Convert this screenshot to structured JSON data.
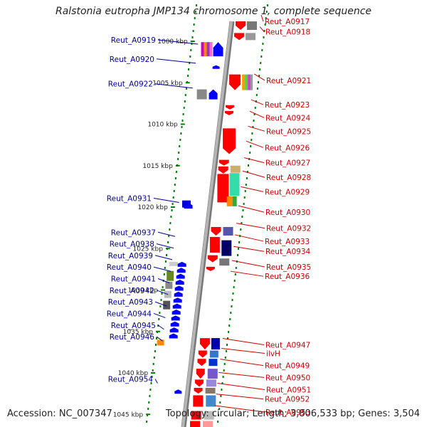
{
  "title": "Ralstonia eutropha JMP134 chromosome 1, complete sequence",
  "accession_text": "Accession: NC_007347",
  "summary_text": "Topology: circular; Length: 3,806,533 bp; Genes: 3,504",
  "scale_unit": "kbp",
  "scale_ticks": [
    1000,
    1005,
    1010,
    1015,
    1020,
    1025,
    1030,
    1035,
    1040,
    1045
  ],
  "colors": {
    "forward_gene": "#ff0000",
    "reverse_gene": "#0000ff",
    "forward_label": "#cc0000",
    "reverse_label": "#000099",
    "backbone": "#a0a0a0",
    "ruler_dots": "#008000"
  },
  "left_labels": [
    {
      "text": "Reut_A0919",
      "kbp": 1000.0
    },
    {
      "text": "Reut_A0920",
      "kbp": 1002.3
    },
    {
      "text": "Reut_A0922",
      "kbp": 1005.3
    },
    {
      "text": "Reut_A0931",
      "kbp": 1019.1
    },
    {
      "text": "Reut_A0937",
      "kbp": 1023.2
    },
    {
      "text": "Reut_A0938",
      "kbp": 1024.6
    },
    {
      "text": "Reut_A0939",
      "kbp": 1026.0
    },
    {
      "text": "Reut_A0940",
      "kbp": 1027.4
    },
    {
      "text": "Reut_A0941",
      "kbp": 1028.8
    },
    {
      "text": "Reut_A0942",
      "kbp": 1030.2
    },
    {
      "text": "Reut_A0943",
      "kbp": 1031.6
    },
    {
      "text": "Reut_A0944",
      "kbp": 1033.0
    },
    {
      "text": "Reut_A0945",
      "kbp": 1034.4
    },
    {
      "text": "Reut_A0946",
      "kbp": 1035.8
    },
    {
      "text": "Reut_A0954",
      "kbp": 1040.9
    }
  ],
  "right_labels": [
    {
      "text": "Reut_A0917",
      "kbp": 997.7
    },
    {
      "text": "Reut_A0918",
      "kbp": 999.1
    },
    {
      "text": "Reut_A0921",
      "kbp": 1004.8
    },
    {
      "text": "Reut_A0923",
      "kbp": 1007.9
    },
    {
      "text": "Reut_A0924",
      "kbp": 1009.3
    },
    {
      "text": "Reut_A0925",
      "kbp": 1011.1
    },
    {
      "text": "Reut_A0926",
      "kbp": 1012.9
    },
    {
      "text": "Reut_A0927",
      "kbp": 1014.9
    },
    {
      "text": "Reut_A0928",
      "kbp": 1016.5
    },
    {
      "text": "Reut_A0929",
      "kbp": 1018.4
    },
    {
      "text": "Reut_A0930",
      "kbp": 1020.7
    },
    {
      "text": "Reut_A0932",
      "kbp": 1022.8
    },
    {
      "text": "Reut_A0933",
      "kbp": 1024.2
    },
    {
      "text": "Reut_A0934",
      "kbp": 1025.6
    },
    {
      "text": "Reut_A0935",
      "kbp": 1027.3
    },
    {
      "text": "Reut_A0936",
      "kbp": 1028.6
    },
    {
      "text": "Reut_A0947",
      "kbp": 1036.7
    },
    {
      "text": "ilvH",
      "kbp": 1037.9
    },
    {
      "text": "Reut_A0949",
      "kbp": 1039.2
    },
    {
      "text": "Reut_A0950",
      "kbp": 1040.8
    },
    {
      "text": "Reut_A0951",
      "kbp": 1042.1
    },
    {
      "text": "Reut_A0952",
      "kbp": 1043.4
    },
    {
      "text": "Reut_A0953",
      "kbp": 1044.8
    }
  ]
}
